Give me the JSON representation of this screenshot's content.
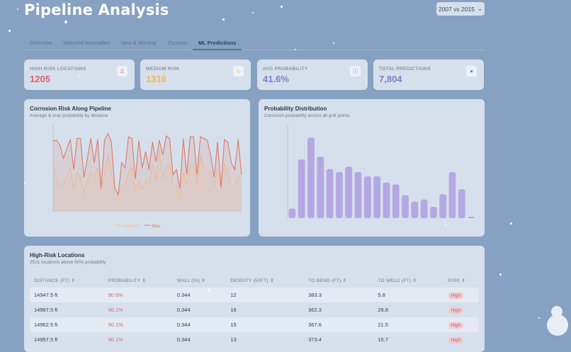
{
  "header": {
    "title": "Pipeline Analysis",
    "comparison": "2007 vs 2015"
  },
  "tabs": [
    {
      "label": "Overview"
    },
    {
      "label": "Matched Anomalies"
    },
    {
      "label": "New & Missing"
    },
    {
      "label": "Clusters"
    },
    {
      "label": "ML Predictions",
      "active": true
    }
  ],
  "kpis": [
    {
      "label": "HIGH RISK LOCATIONS",
      "value": "1205",
      "color": "#d9646e",
      "icon": "alert-triangle-icon",
      "glyph": "⚠"
    },
    {
      "label": "MEDIUM RISK",
      "value": "1316",
      "color": "#f0b45a",
      "icon": "activity-icon",
      "glyph": "∿"
    },
    {
      "label": "AVG PROBABILITY",
      "value": "41.6%",
      "color": "#7d7fc4",
      "icon": "info-circle-icon",
      "glyph": "ⓘ"
    },
    {
      "label": "TOTAL PREDICTIONS",
      "value": "7,804",
      "color": "#7d7fc4",
      "icon": "target-icon",
      "glyph": "●"
    }
  ],
  "line_panel": {
    "title": "Corrosion Risk Along Pipeline",
    "subtitle": "Average & max probability by distance"
  },
  "bar_panel": {
    "title": "Probability Distribution",
    "subtitle": "Corrosion probability across all grid points"
  },
  "chart_data": [
    {
      "type": "line",
      "ylim": [
        0,
        1
      ],
      "grid": false,
      "legend": "bottom",
      "series": [
        {
          "name": "Average",
          "color": "#f5c08e",
          "values": [
            0.55,
            0.35,
            0.3,
            0.3,
            0.4,
            0.5,
            0.25,
            0.45,
            0.4,
            0.2,
            0.35,
            0.45,
            0.4,
            0.5,
            0.25,
            0.4,
            0.65,
            0.45,
            0.2,
            0.18,
            0.3,
            0.28,
            0.45,
            0.5,
            0.25,
            0.35,
            0.25,
            0.35,
            0.3,
            0.55,
            0.35,
            0.7,
            0.4,
            0.5,
            0.55,
            0.3,
            0.3,
            0.15,
            0.45,
            0.3,
            0.55,
            0.55,
            0.3,
            0.65,
            0.5,
            0.45,
            0.45,
            0.3,
            0.5,
            0.25,
            0.55,
            0.45,
            0.3,
            0.3,
            0.4,
            0.35
          ]
        },
        {
          "name": "Max",
          "color": "#dc7a66",
          "values": [
            0.81,
            0.82,
            0.76,
            0.61,
            0.72,
            0.83,
            0.48,
            0.84,
            0.84,
            0.39,
            0.61,
            0.84,
            0.56,
            0.83,
            0.26,
            0.82,
            0.9,
            0.8,
            0.27,
            0.19,
            0.56,
            0.5,
            0.86,
            0.84,
            0.37,
            0.82,
            0.5,
            0.69,
            0.48,
            0.8,
            0.57,
            0.82,
            0.65,
            0.87,
            0.84,
            0.42,
            0.48,
            0.26,
            0.84,
            0.42,
            0.86,
            0.86,
            0.42,
            0.86,
            0.84,
            0.82,
            0.64,
            0.39,
            0.8,
            0.28,
            0.83,
            0.79,
            0.56,
            0.48,
            0.83,
            0.42
          ]
        }
      ]
    },
    {
      "type": "bar",
      "color": "#b5a7e3",
      "values": [
        40,
        248,
        341,
        260,
        208,
        195,
        218,
        195,
        177,
        177,
        151,
        143,
        97,
        70,
        79,
        48,
        101,
        195,
        122,
        6
      ]
    }
  ],
  "table": {
    "title": "High-Risk Locations",
    "subtitle": "2521 locations above 50% probability",
    "columns": [
      "DISTANCE (FT) ⇕",
      "PROBABILITY ⇕",
      "WALL (IN) ⇕",
      "DENSITY (50FT) ⇕",
      "TO BEND (FT) ⇕",
      "TO WELD (FT) ⇕",
      "RISK ⇕"
    ],
    "rows": [
      [
        "14947.5 ft",
        "90.6%",
        "0.344",
        "12",
        "383.3",
        "5.8",
        "High"
      ],
      [
        "14967.5 ft",
        "90.1%",
        "0.344",
        "16",
        "362.3",
        "26.8",
        "High"
      ],
      [
        "14962.5 ft",
        "90.1%",
        "0.344",
        "15",
        "367.6",
        "21.5",
        "High"
      ],
      [
        "14957.5 ft",
        "90.1%",
        "0.344",
        "13",
        "373.4",
        "15.7",
        "High"
      ]
    ]
  }
}
